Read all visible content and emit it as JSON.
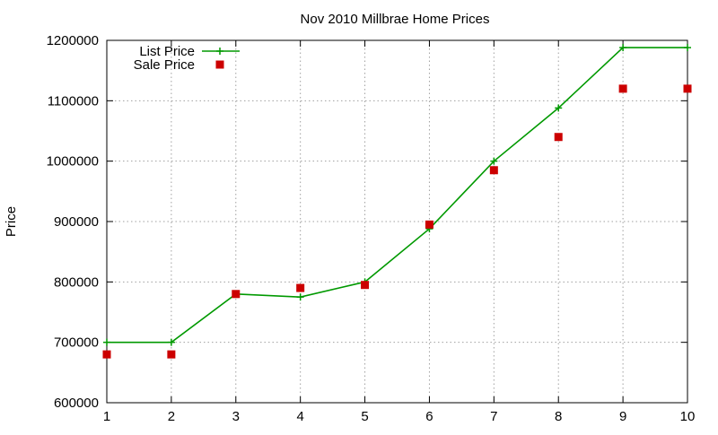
{
  "chart_data": {
    "type": "line",
    "title": "Nov 2010 Millbrae Home Prices",
    "xlabel": "",
    "ylabel": "Price",
    "x": [
      1,
      2,
      3,
      4,
      5,
      6,
      7,
      8,
      9,
      10
    ],
    "xlim": [
      1,
      10
    ],
    "ylim": [
      600000,
      1200000
    ],
    "x_ticks": [
      "1",
      "2",
      "3",
      "4",
      "5",
      "6",
      "7",
      "8",
      "9",
      "10"
    ],
    "y_ticks": [
      "600000",
      "700000",
      "800000",
      "900000",
      "1000000",
      "1100000",
      "1200000"
    ],
    "grid": true,
    "legend_position": "top-left",
    "series": [
      {
        "name": "List Price",
        "style": "line-with-plus-markers",
        "color": "#009900",
        "values": [
          700000,
          700000,
          780000,
          775000,
          800000,
          888000,
          1000000,
          1088000,
          1188000,
          1188000
        ]
      },
      {
        "name": "Sale Price",
        "style": "square-markers",
        "color": "#cc0000",
        "values": [
          680000,
          680000,
          780000,
          790000,
          795000,
          895000,
          985000,
          1040000,
          1120000,
          1120000
        ]
      }
    ]
  }
}
